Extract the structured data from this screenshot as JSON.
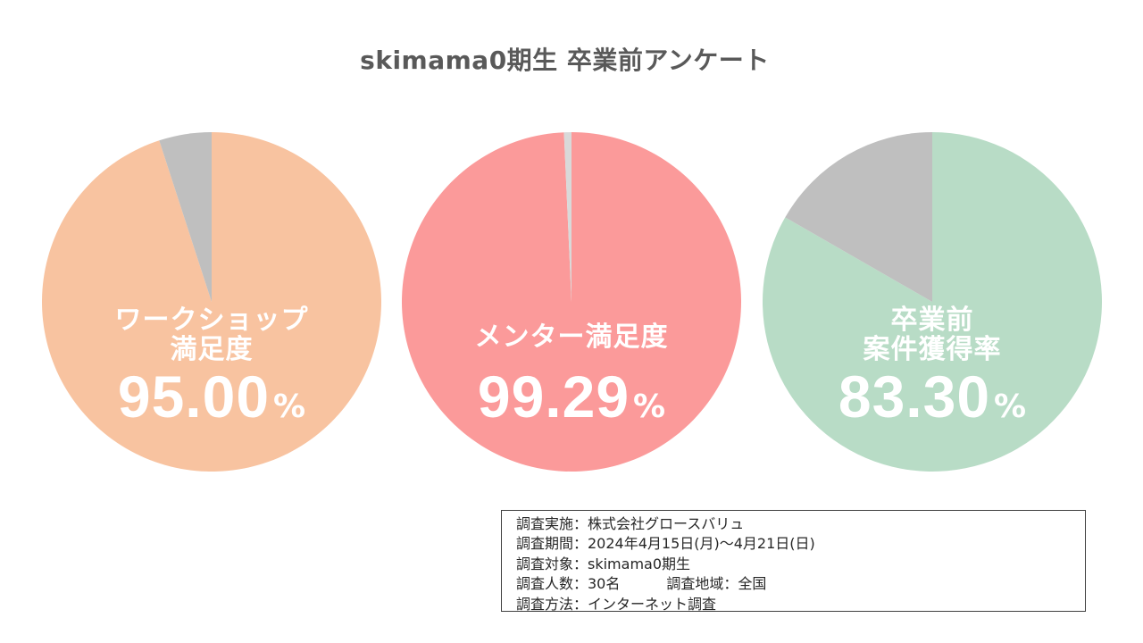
{
  "title": "skimama0期生 卒業前アンケート",
  "chart_data": [
    {
      "type": "pie",
      "label_lines": [
        "ワークショップ",
        "満足度"
      ],
      "value": 95.0,
      "value_text": "95.00",
      "unit": "%",
      "remainder": 5.0,
      "colors": {
        "main": "#F8C3A0",
        "rest": "#BFBFBF"
      }
    },
    {
      "type": "pie",
      "label_lines": [
        "メンター満足度"
      ],
      "value": 99.29,
      "value_text": "99.29",
      "unit": "%",
      "remainder": 0.71,
      "colors": {
        "main": "#FB9A9A",
        "rest": "#D9D9D9"
      }
    },
    {
      "type": "pie",
      "label_lines": [
        "卒業前",
        "案件獲得率"
      ],
      "value": 83.3,
      "value_text": "83.30",
      "unit": "%",
      "remainder": 16.7,
      "colors": {
        "main": "#B8DCC6",
        "rest": "#BFBFBF"
      }
    }
  ],
  "survey_info": {
    "implementer": "調査実施：株式会社グロースバリュ",
    "period": "調査期間：2024年4月15日(月)～4月21日(日)",
    "target": "調査対象：skimama0期生",
    "count": "調査人数：30名",
    "region": "調査地域：全国",
    "method": "調査方法：インターネット調査"
  }
}
